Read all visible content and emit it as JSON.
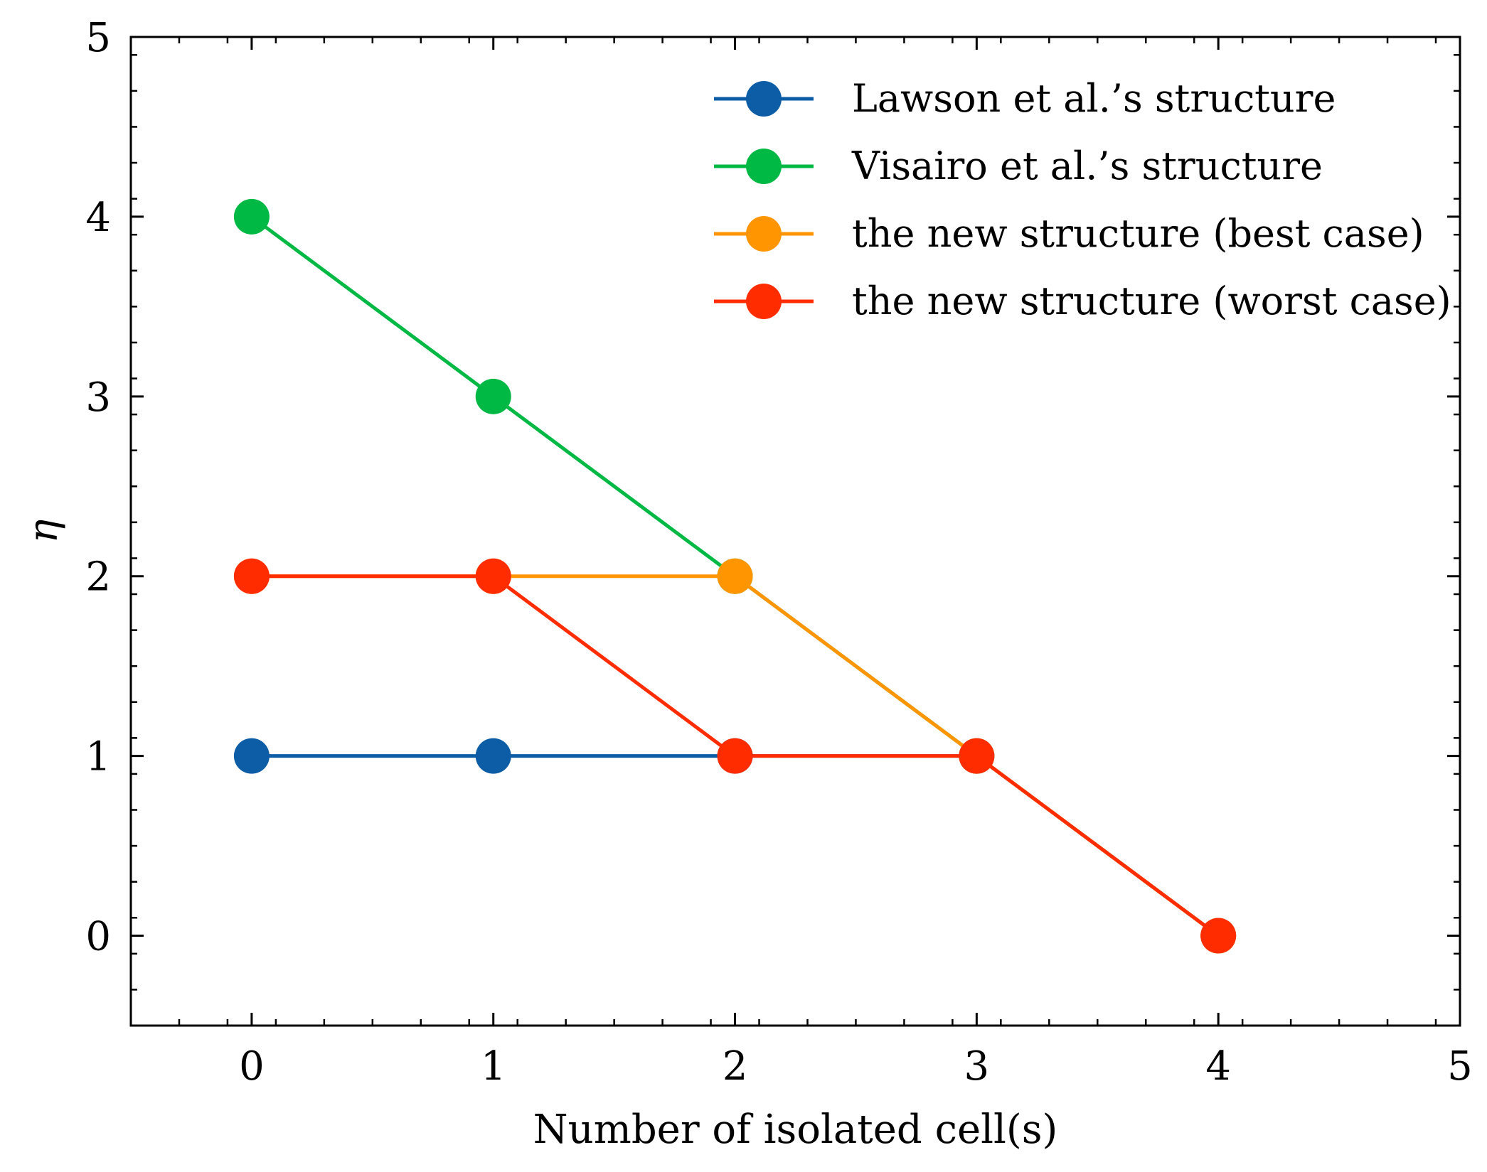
{
  "chart_data": {
    "type": "line",
    "xlabel": "Number of isolated cell(s)",
    "ylabel": "η",
    "xlim": [
      -0.5,
      5
    ],
    "ylim": [
      -0.5,
      5
    ],
    "xticks": [
      0,
      1,
      2,
      3,
      4,
      5
    ],
    "yticks": [
      0,
      1,
      2,
      3,
      4,
      5
    ],
    "grid": false,
    "legend_position": "top-right",
    "series": [
      {
        "name": "Lawson et al.’s structure",
        "color": "#0C5DA5",
        "x": [
          0,
          1,
          2,
          3
        ],
        "y": [
          1,
          1,
          1,
          1
        ]
      },
      {
        "name": "Visairo et al.’s structure",
        "color": "#00B945",
        "x": [
          0,
          1,
          2,
          3,
          4
        ],
        "y": [
          4,
          3,
          2,
          1,
          0
        ]
      },
      {
        "name": "the new structure (best case)",
        "color": "#FF9500",
        "x": [
          0,
          1,
          2,
          3,
          4
        ],
        "y": [
          2,
          2,
          2,
          1,
          0
        ]
      },
      {
        "name": "the new structure (worst case)",
        "color": "#FF2C00",
        "x": [
          0,
          1,
          2,
          3,
          4
        ],
        "y": [
          2,
          2,
          1,
          1,
          0
        ]
      }
    ]
  }
}
